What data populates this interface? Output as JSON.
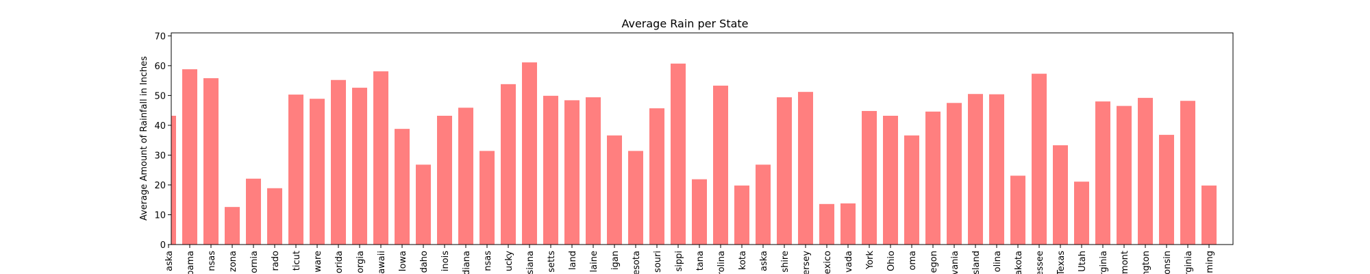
{
  "chart_data": {
    "type": "bar",
    "title": "Average Rain per State",
    "xlabel": "",
    "ylabel": "Average Amount of Rainfall in Inches",
    "ylim": [
      0,
      71
    ],
    "yticks": [
      0,
      10,
      20,
      30,
      40,
      50,
      60,
      70
    ],
    "grid": false,
    "bar_color": "#ff7f7f",
    "categories": [
      "aska",
      "bama",
      "nsas",
      "zona",
      "ornia",
      "rado",
      "ticut",
      "ware",
      "orida",
      "orgia",
      "awaii",
      "Iowa",
      "daho",
      "inois",
      "diana",
      "nsas",
      "ucky",
      "siana",
      "setts",
      "land",
      "laine",
      "igan",
      "esota",
      "souri",
      "sippi",
      "tana",
      "rolina",
      "kota",
      "aska",
      "shire",
      "ersey",
      "exico",
      "vada",
      "York",
      "Ohio",
      "oma",
      "egon",
      "vania",
      "sland",
      "olina",
      "akota",
      "essee",
      "Texas",
      "Utah",
      "rginia",
      "rmont",
      "ngton",
      "onsin",
      "rginia",
      "ming"
    ],
    "values": [
      43.2,
      58.8,
      55.8,
      12.6,
      22.1,
      18.9,
      50.3,
      48.9,
      55.2,
      52.6,
      58.1,
      38.8,
      26.8,
      43.2,
      45.9,
      31.4,
      53.8,
      61.1,
      49.9,
      48.4,
      49.4,
      36.6,
      31.4,
      45.7,
      60.7,
      21.9,
      53.3,
      19.8,
      26.8,
      49.4,
      51.2,
      13.6,
      13.8,
      44.8,
      43.2,
      36.6,
      44.6,
      47.5,
      50.5,
      50.4,
      23.1,
      57.3,
      33.3,
      21.1,
      48.0,
      46.5,
      49.2,
      36.8,
      48.2,
      19.8
    ]
  }
}
